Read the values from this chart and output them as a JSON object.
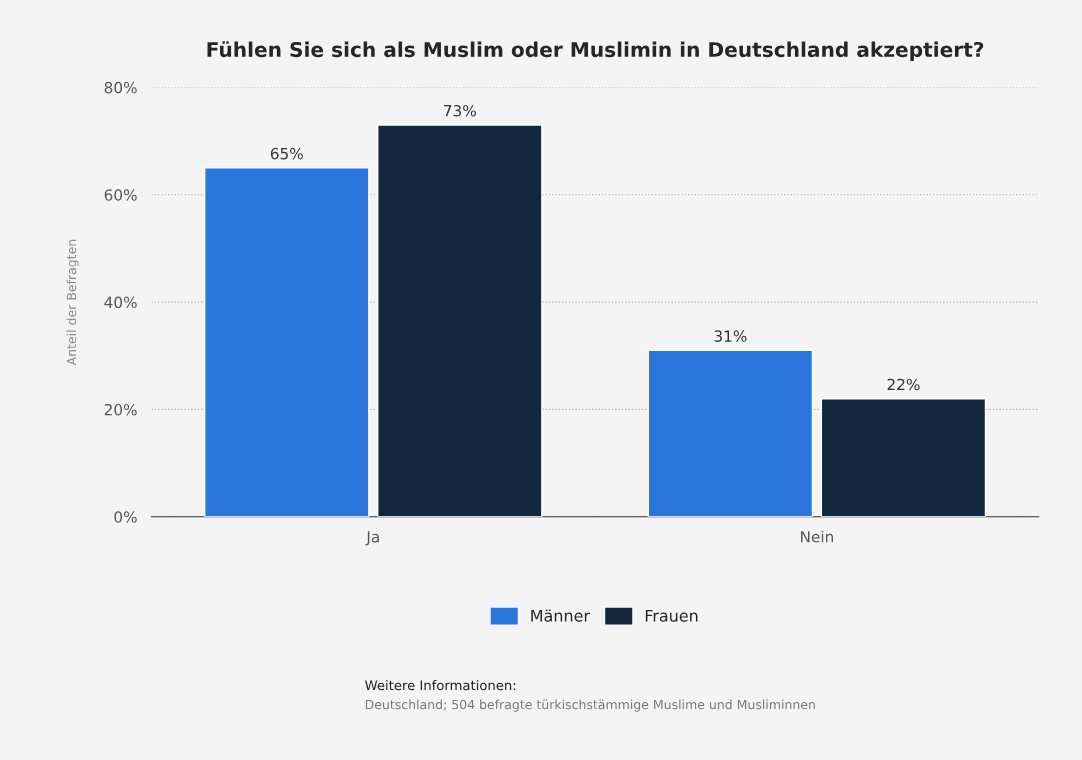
{
  "chart_data": {
    "type": "bar",
    "title": "Fühlen Sie sich als Muslim oder Muslimin in Deutschland akzeptiert?",
    "ylabel": "Anteil der Befragten",
    "categories": [
      "Ja",
      "Nein"
    ],
    "series": [
      {
        "name": "Männer",
        "color": "#2a76dd",
        "values": [
          65,
          31
        ],
        "value_labels": [
          "65%",
          "31%"
        ]
      },
      {
        "name": "Frauen",
        "color": "#13273f",
        "values": [
          73,
          22
        ],
        "value_labels": [
          "73%",
          "22%"
        ]
      }
    ],
    "ylim": [
      0,
      80
    ],
    "yticks": [
      {
        "value": 0,
        "label": "0%"
      },
      {
        "value": 20,
        "label": "20%"
      },
      {
        "value": 40,
        "label": "40%"
      },
      {
        "value": 60,
        "label": "60%"
      },
      {
        "value": 80,
        "label": "80%"
      }
    ],
    "grid": "y",
    "legend": "bottom",
    "annotations": [
      "Weitere Informationen:",
      "Deutschland; 504 befragte türkischstämmige Muslime und Musliminnen"
    ]
  }
}
